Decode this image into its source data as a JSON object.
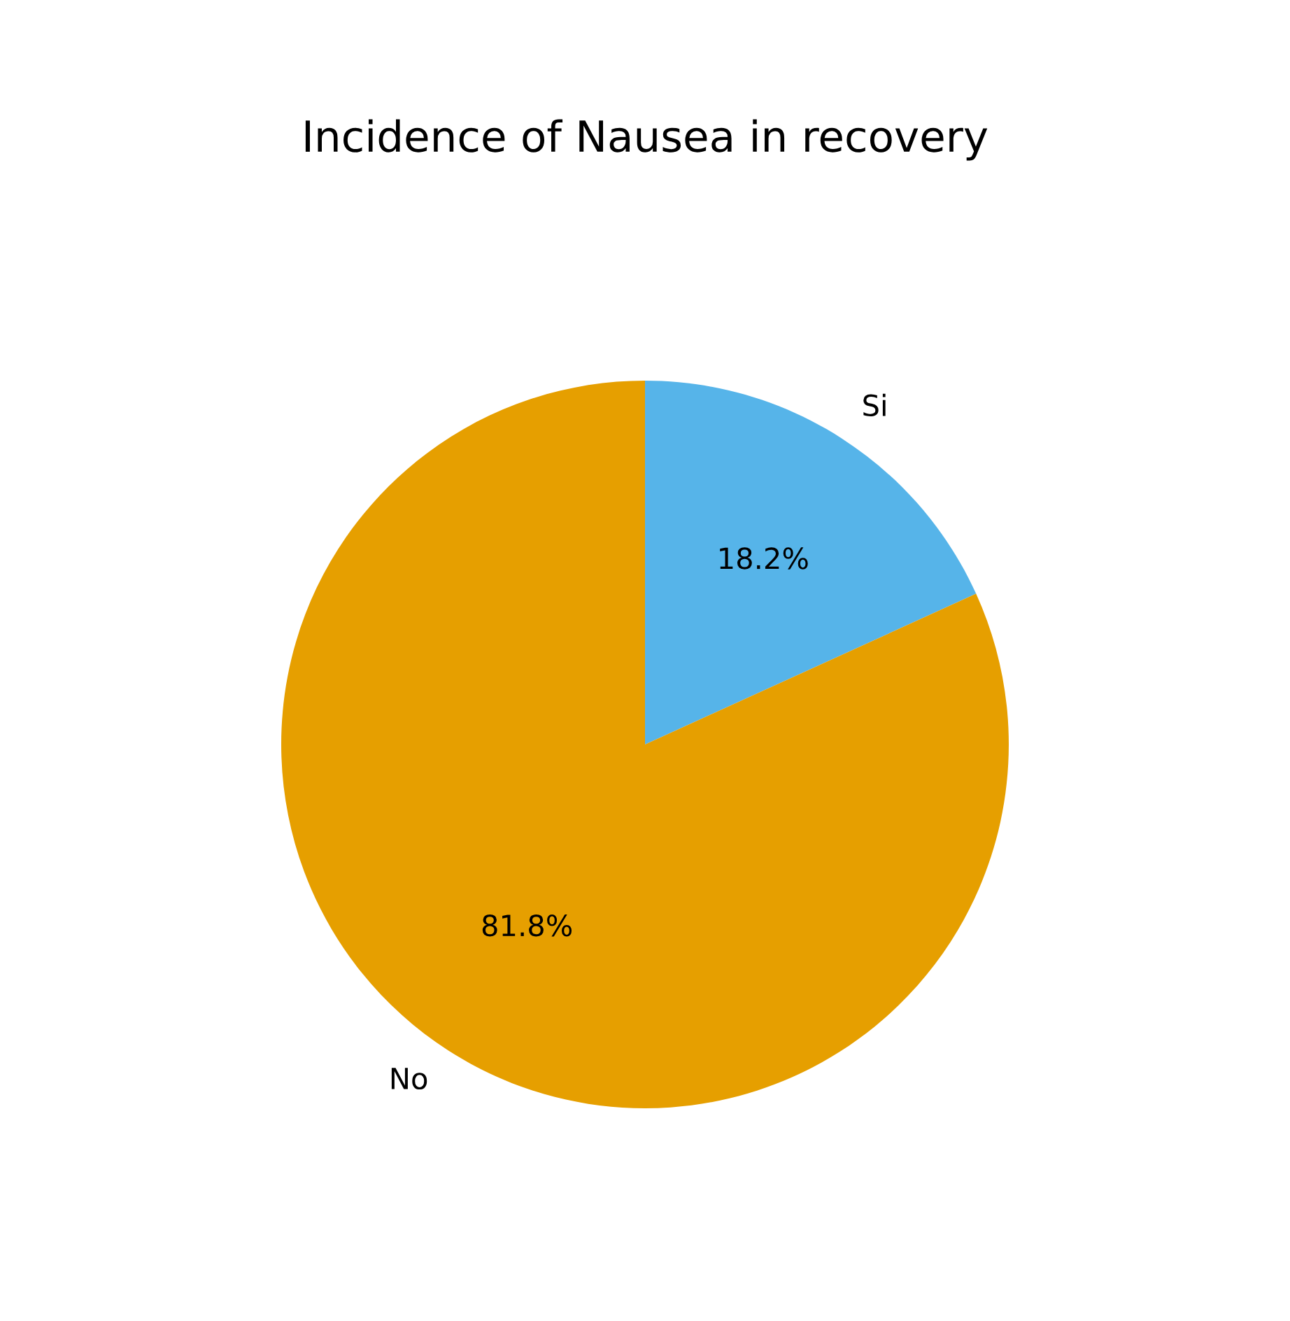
{
  "chart_data": {
    "type": "pie",
    "title": "Incidence of Nausea in recovery",
    "categories": [
      "Si",
      "No"
    ],
    "values": [
      18.2,
      81.8
    ],
    "colors": [
      "#56b4e9",
      "#e69f00"
    ],
    "value_labels": [
      "18.2%",
      "81.8%"
    ],
    "legend": false
  }
}
